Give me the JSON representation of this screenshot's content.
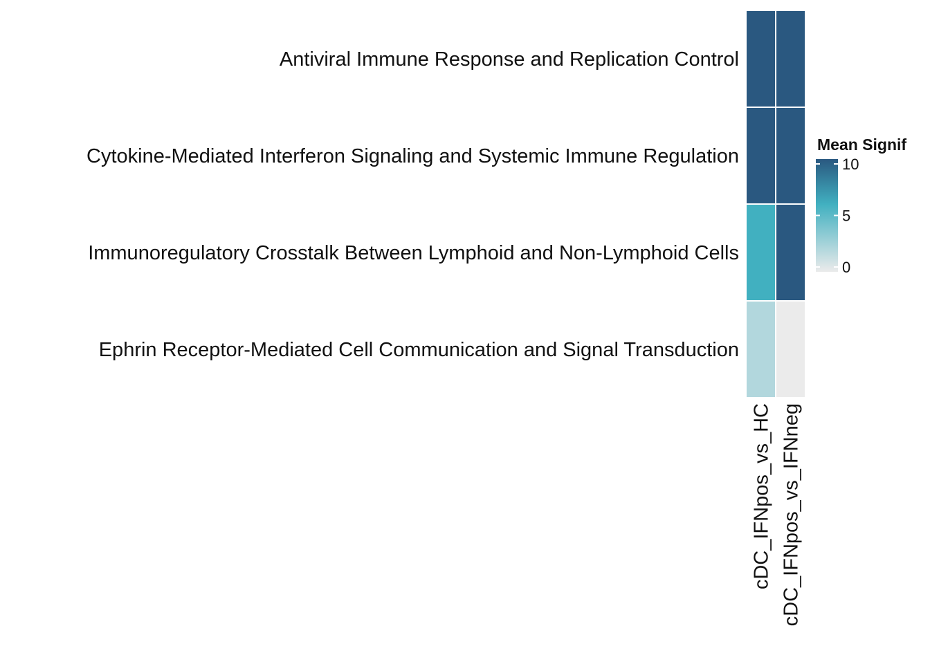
{
  "chart_data": {
    "type": "heatmap",
    "rows": [
      "Antiviral Immune Response and Replication Control",
      "Cytokine-Mediated Interferon Signaling and Systemic Immune Regulation",
      "Immunoregulatory Crosstalk Between Lymphoid and Non-Lymphoid Cells",
      "Ephrin Receptor-Mediated Cell Communication and Signal Transduction"
    ],
    "columns": [
      "cDC_IFNpos_vs_HC",
      "cDC_IFNpos_vs_IFNneg"
    ],
    "values": [
      [
        10,
        10
      ],
      [
        10,
        10
      ],
      [
        6,
        10
      ],
      [
        2,
        0
      ]
    ],
    "legend": {
      "title": "Mean Signif",
      "ticks": [
        10,
        5,
        0
      ],
      "range": [
        0,
        10
      ]
    },
    "colors": {
      "low": "#ebebeb",
      "mid": "#41b0c0",
      "high": "#2a5880"
    },
    "xlabel": "",
    "ylabel": ""
  }
}
